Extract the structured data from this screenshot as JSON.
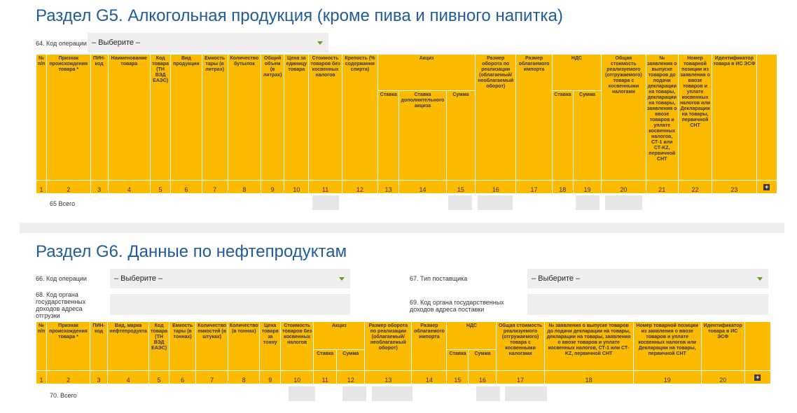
{
  "g5": {
    "title": "Раздел G5. Алкогольная продукция (кроме пива и пивного напитка)",
    "op_label": "64. Код операции",
    "op_value": "– Выберите –",
    "headers": {
      "c1": "№ п/п",
      "c2": "Признак происхождения товара *",
      "c3": "ПИН-код",
      "c4": "Наименование товара",
      "c5": "Код товара (ТН ВЭД ЕАЭС)",
      "c6": "Вид продукции",
      "c7": "Емкость тары (в литрах)",
      "c8": "Количество бутылок",
      "c9": "Общий объем (в литрах)",
      "c10": "Цена за единицу товара",
      "c11": "Стоимость товаров без косвенных налогов",
      "c12": "Крепость (% содержания спирта)",
      "excise": "Акциз",
      "c13": "Ставка",
      "c14": "Ставка дополнительного акциза",
      "c15": "Сумма",
      "c16": "Размер оборота по реализации (облагаемый/ необлагаемый оборот)",
      "c17": "Размер облагаемого импорта",
      "vat": "НДС",
      "c18": "Ставка",
      "c19": "Сумма",
      "c20": "Общая стоимость реализуемого (отгружаемого) товара с косвенными налогами",
      "c21": "№ заявления о выпуске товаров до подачи декларации на товары, декларации на товары, заявления о ввозе товаров и уплате косвенных налогов, СТ-1 или СТ-KZ, первичной СНТ",
      "c22": "Номер товарной позиции из заявления о ввозе товаров и уплате косвенных налогов или Декларации на товары, первичной СНТ",
      "c23": "Идентификатор товара в ИС ЭСФ"
    },
    "numbers": [
      "1",
      "2",
      "3",
      "4",
      "5",
      "6",
      "7",
      "8",
      "9",
      "10",
      "11",
      "12",
      "13",
      "14",
      "15",
      "16",
      "17",
      "18",
      "19",
      "20",
      "21",
      "22",
      "23"
    ],
    "total_label": "65 Всего"
  },
  "g6": {
    "title": "Раздел G6. Данные по нефтепродуктам",
    "op_label": "66. Код операции",
    "op_value": "– Выберите –",
    "supplier_label": "67. Тип поставщика",
    "supplier_value": "– Выберите –",
    "org_ship_label": "68. Код органа государственных доходов адреса отгрузки",
    "org_delivery_label": "69. Код органа государственных доходов адреса поставки",
    "headers": {
      "c1": "№ п/п",
      "c2": "Признак происхождения товара *",
      "c3": "ПИН-код",
      "c4": "Вид, марка нефтепродукта",
      "c5": "Код товара (ТН ВЭД ЕАЭС)",
      "c6": "Емкость тары (в тоннах)",
      "c7": "Количество емкостей (в штуках)",
      "c8": "Количество (в тоннах)",
      "c9": "Цена товара за тонну",
      "c10": "Стоимость товаров без косвенных налогов",
      "excise": "Акциз",
      "c11": "Ставка",
      "c12": "Сумма",
      "c13": "Размер оборота по реализации (облагаемый/ необлагаемый оборот)",
      "c14": "Размер облагаемого импорта",
      "vat": "НДС",
      "c15": "Ставка",
      "c16": "Сумма",
      "c17": "Общая стоимость реализуемого (отгружаемого) товара с косвенными налогами",
      "c18": "№ заявления о выпуске товаров до подачи декларации на товары, декларации на товары, заявления о ввозе товаров и уплате косвенных налогов, СТ-1 или СТ-KZ, первичной СНТ",
      "c19": "Номер товарной позиции из заявления о ввозе товаров и уплате косвенных налогов или Декларации на товары, первичной СНТ",
      "c20": "Идентификатор товара в ИС ЭСФ"
    },
    "numbers": [
      "1",
      "2",
      "3",
      "4",
      "5",
      "6",
      "7",
      "8",
      "9",
      "10",
      "11",
      "12",
      "13",
      "14",
      "15",
      "16",
      "17",
      "18",
      "19",
      "20"
    ],
    "total_label": "70. Всего"
  },
  "add_symbol": "+",
  "icons": {
    "dropdown": "chevron-down-icon",
    "add": "plus-icon"
  }
}
